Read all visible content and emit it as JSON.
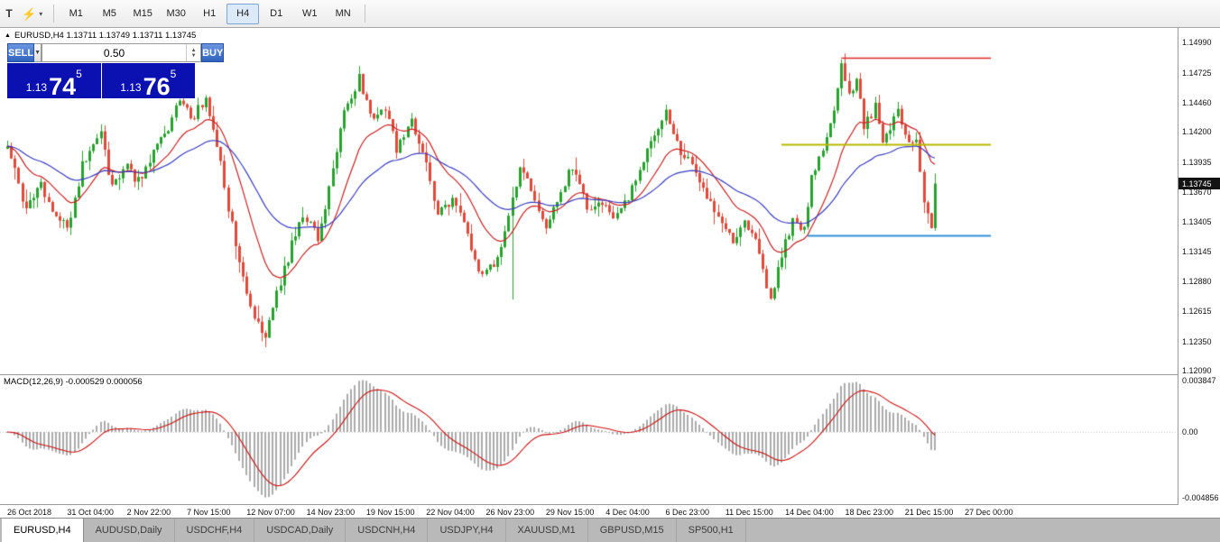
{
  "toolbar": {
    "grip_label": "T",
    "timeframes": [
      "M1",
      "M5",
      "M15",
      "M30",
      "H1",
      "H4",
      "D1",
      "W1",
      "MN"
    ],
    "selected_timeframe": "H4"
  },
  "chart": {
    "header": "EURUSD,H4 1.13711 1.13749 1.13711 1.13745"
  },
  "trade_panel": {
    "sell_label": "SELL",
    "buy_label": "BUY",
    "volume": "0.50",
    "sell_price": {
      "base": "1.13",
      "big": "74",
      "sup": "5"
    },
    "buy_price": {
      "base": "1.13",
      "big": "76",
      "sup": "5"
    }
  },
  "price_axis": {
    "labels": [
      "1.14990",
      "1.14725",
      "1.14460",
      "1.14200",
      "1.13935",
      "1.13670",
      "1.13405",
      "1.13145",
      "1.12880",
      "1.12615",
      "1.12350",
      "1.12090"
    ],
    "current": "1.13745"
  },
  "macd_panel": {
    "label": "MACD(12,26,9) -0.000529 0.000056",
    "axis_labels": [
      "0.003847",
      "0.00",
      "-0.004856"
    ]
  },
  "time_axis": [
    "26 Oct 2018",
    "31 Oct 04:00",
    "2 Nov 22:00",
    "7 Nov 15:00",
    "12 Nov 07:00",
    "14 Nov 23:00",
    "19 Nov 15:00",
    "22 Nov 04:00",
    "26 Nov 23:00",
    "29 Nov 15:00",
    "4 Dec 04:00",
    "6 Dec 23:00",
    "11 Dec 15:00",
    "14 Dec 04:00",
    "18 Dec 23:00",
    "21 Dec 15:00",
    "27 Dec 00:00"
  ],
  "tabs": [
    "EURUSD,H4",
    "AUDUSD,Daily",
    "USDCHF,H4",
    "USDCAD,Daily",
    "USDCNH,H4",
    "USDJPY,H4",
    "XAUUSD,M1",
    "GBPUSD,M15",
    "SP500,H1"
  ],
  "active_tab": "EURUSD,H4",
  "chart_data": {
    "type": "candlestick",
    "title": "EURUSD,H4",
    "candles": 249,
    "last_close": 1.13745,
    "price_range": [
      1.1206,
      1.1512
    ],
    "labels_every_candles": 16,
    "price_path": [
      [
        0,
        1.1408
      ],
      [
        3,
        1.1372
      ],
      [
        5,
        1.1352
      ],
      [
        9,
        1.1372
      ],
      [
        12,
        1.1352
      ],
      [
        16,
        1.1333
      ],
      [
        20,
        1.139
      ],
      [
        25,
        1.1418
      ],
      [
        28,
        1.137
      ],
      [
        32,
        1.1388
      ],
      [
        35,
        1.1376
      ],
      [
        39,
        1.14
      ],
      [
        43,
        1.1425
      ],
      [
        46,
        1.1452
      ],
      [
        49,
        1.143
      ],
      [
        53,
        1.145
      ],
      [
        56,
        1.141
      ],
      [
        59,
        1.1352
      ],
      [
        63,
        1.1292
      ],
      [
        66,
        1.1256
      ],
      [
        69,
        1.1236
      ],
      [
        72,
        1.1276
      ],
      [
        76,
        1.132
      ],
      [
        79,
        1.1348
      ],
      [
        83,
        1.1326
      ],
      [
        87,
        1.1386
      ],
      [
        90,
        1.1438
      ],
      [
        94,
        1.1467
      ],
      [
        97,
        1.1433
      ],
      [
        101,
        1.144
      ],
      [
        104,
        1.1406
      ],
      [
        108,
        1.1428
      ],
      [
        112,
        1.1392
      ],
      [
        115,
        1.1349
      ],
      [
        119,
        1.136
      ],
      [
        123,
        1.1329
      ],
      [
        126,
        1.1293
      ],
      [
        130,
        1.1303
      ],
      [
        133,
        1.1331
      ],
      [
        137,
        1.1388
      ],
      [
        140,
        1.1371
      ],
      [
        144,
        1.1333
      ],
      [
        148,
        1.1368
      ],
      [
        151,
        1.139
      ],
      [
        155,
        1.1352
      ],
      [
        159,
        1.1356
      ],
      [
        162,
        1.1341
      ],
      [
        166,
        1.1362
      ],
      [
        169,
        1.139
      ],
      [
        173,
        1.1418
      ],
      [
        176,
        1.1438
      ],
      [
        180,
        1.1403
      ],
      [
        183,
        1.1392
      ],
      [
        187,
        1.1363
      ],
      [
        190,
        1.1343
      ],
      [
        194,
        1.1322
      ],
      [
        197,
        1.1342
      ],
      [
        200,
        1.1322
      ],
      [
        204,
        1.1273
      ],
      [
        207,
        1.1312
      ],
      [
        210,
        1.1342
      ],
      [
        213,
        1.1332
      ],
      [
        215,
        1.1382
      ],
      [
        218,
        1.1402
      ],
      [
        221,
        1.1442
      ],
      [
        223,
        1.1477
      ],
      [
        225,
        1.1452
      ],
      [
        227,
        1.1469
      ],
      [
        229,
        1.1423
      ],
      [
        232,
        1.1442
      ],
      [
        234,
        1.1413
      ],
      [
        236,
        1.1422
      ],
      [
        238,
        1.144
      ],
      [
        241,
        1.1412
      ],
      [
        243,
        1.1416
      ],
      [
        245,
        1.136
      ],
      [
        247,
        1.1338
      ],
      [
        248,
        1.13745
      ]
    ],
    "wick_events": [
      {
        "index": 69,
        "low": 1.123
      },
      {
        "index": 94,
        "high": 1.1472
      },
      {
        "index": 135,
        "low": 1.1272
      },
      {
        "index": 204,
        "low": 1.128
      },
      {
        "index": 223,
        "high": 1.1484
      }
    ],
    "moving_averages": [
      {
        "period": 15,
        "color": "#cc2222"
      },
      {
        "period": 40,
        "color": "#3a3ec0"
      }
    ],
    "hlines": [
      {
        "price": 1.1486,
        "color": "#dd2a2a",
        "width": 1.4,
        "from_index": 223,
        "to_index": 263
      },
      {
        "price": 1.1409,
        "color": "#b8b800",
        "width": 2,
        "from_index": 207,
        "to_index": 263
      },
      {
        "price": 1.1329,
        "color": "#2e8fd8",
        "width": 2,
        "from_index": 214,
        "to_index": 263
      }
    ],
    "macd": {
      "fast": 12,
      "slow": 26,
      "signal_period": 9,
      "range": [
        -0.00537,
        0.00422
      ],
      "positive_peak": 0.003847,
      "main_value": -0.000529,
      "signal_value": 5.6e-05
    },
    "colors": {
      "up": "#27a22e",
      "down": "#e14a3a",
      "histogram": "#ababab",
      "signal": "#cc1111",
      "bg": "#ffffff"
    }
  }
}
